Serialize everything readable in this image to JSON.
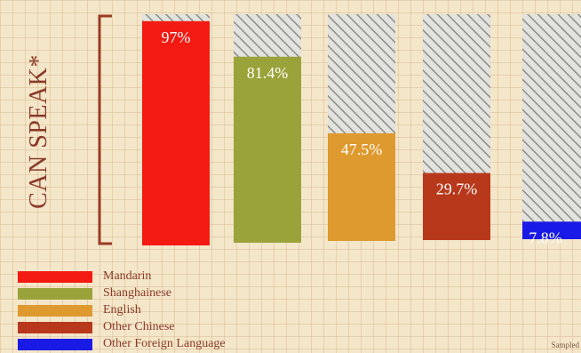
{
  "chart_data": {
    "type": "bar",
    "ylabel": "CAN SPEAK*",
    "categories": [
      "Mandarin",
      "Shanghainese",
      "English",
      "Other Chinese",
      "Other Foreign Language"
    ],
    "values": [
      97,
      81.4,
      47.5,
      29.7,
      7.8
    ],
    "data_labels": [
      "97%",
      "81.4%",
      "47.5%",
      "29.7%",
      "7.8%"
    ],
    "ylim": [
      0,
      100
    ],
    "colors": [
      "#f21a12",
      "#9aa33a",
      "#de9a2e",
      "#b8381c",
      "#1a1ae6"
    ],
    "legend": [
      {
        "label": "Mandarin",
        "color": "#f21a12"
      },
      {
        "label": "Shanghainese",
        "color": "#9aa33a"
      },
      {
        "label": "English",
        "color": "#de9a2e"
      },
      {
        "label": "Other Chinese",
        "color": "#b8381c"
      },
      {
        "label": "Other Foreign Language",
        "color": "#1a1ae6"
      }
    ],
    "legend_position": "bottom-left",
    "background_pattern": "hatched remainder to 100%",
    "grid": true,
    "footnote": "Sampled"
  }
}
